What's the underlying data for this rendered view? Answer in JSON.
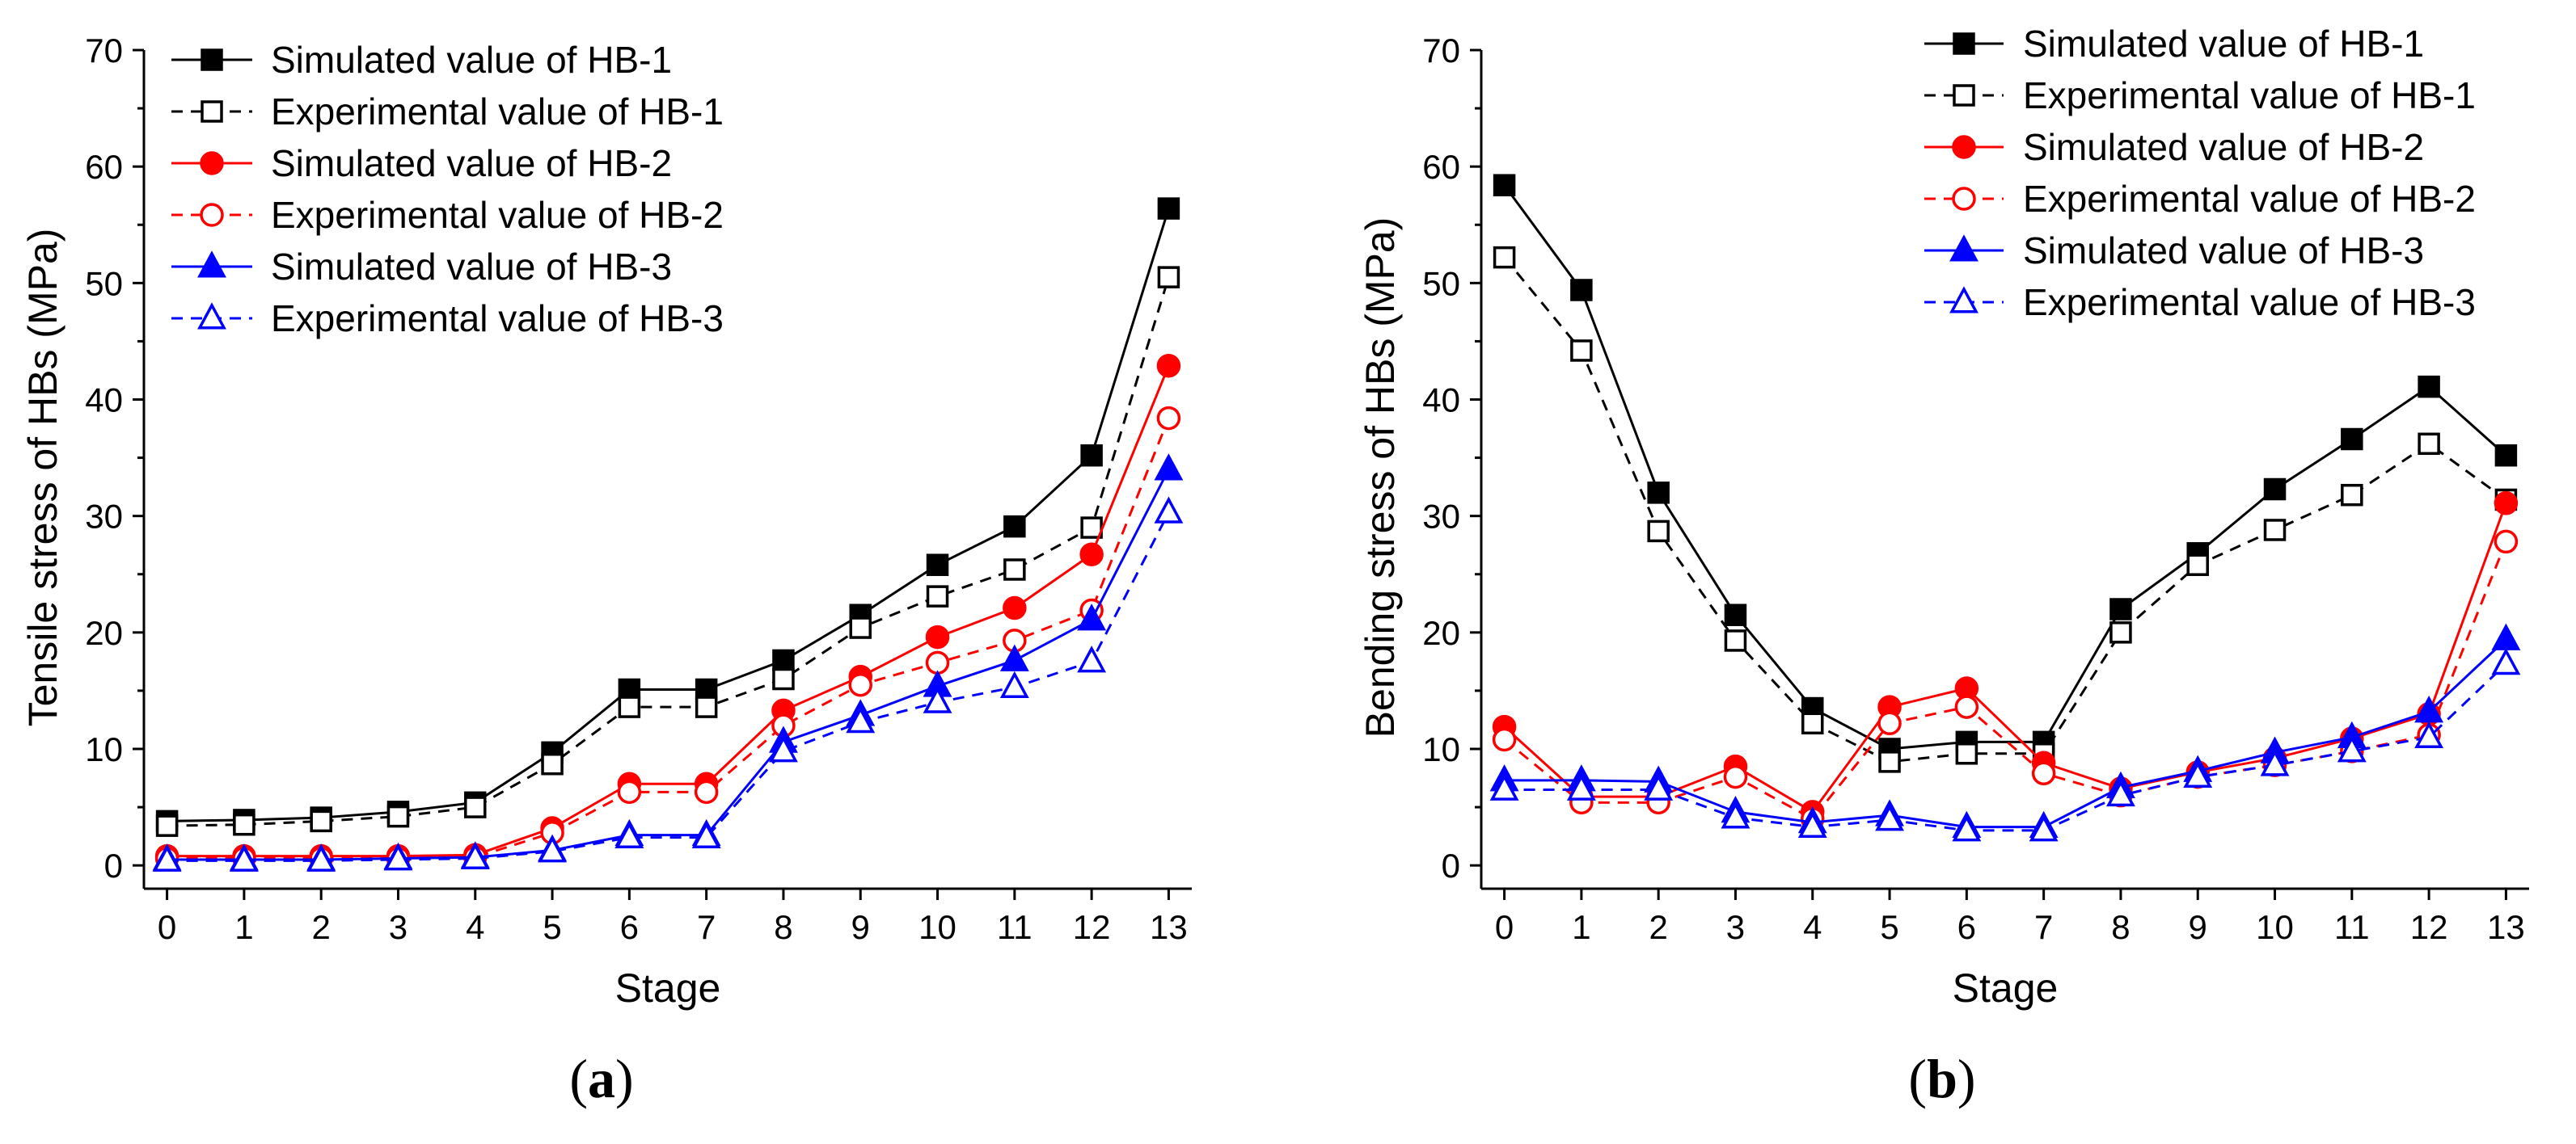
{
  "chart_data": [
    {
      "type": "line",
      "panel_label": "a",
      "xlabel": "Stage",
      "ylabel": "Tensile stress of HBs (MPa)",
      "xlim": [
        -0.3,
        13.3
      ],
      "ylim": [
        -2,
        70
      ],
      "x": [
        0,
        1,
        2,
        3,
        4,
        5,
        6,
        7,
        8,
        9,
        10,
        11,
        12,
        13
      ],
      "xticks": [
        0,
        1,
        2,
        3,
        4,
        5,
        6,
        7,
        8,
        9,
        10,
        11,
        12,
        13
      ],
      "yticks": [
        0,
        10,
        20,
        30,
        40,
        50,
        60,
        70
      ],
      "legend_position": "top-left",
      "series": [
        {
          "name": "Simulated value of HB-1",
          "color": "#000000",
          "marker": "square",
          "filled": true,
          "dashed": false,
          "values": [
            3.8,
            3.9,
            4.1,
            4.6,
            5.4,
            9.7,
            15.1,
            15.1,
            17.6,
            21.5,
            25.8,
            29.1,
            35.2,
            56.4
          ]
        },
        {
          "name": "Experimental value of HB-1",
          "color": "#000000",
          "marker": "square",
          "filled": false,
          "dashed": true,
          "values": [
            3.4,
            3.5,
            3.8,
            4.2,
            5.0,
            8.7,
            13.6,
            13.6,
            16.0,
            20.4,
            23.1,
            25.4,
            29.0,
            50.5
          ]
        },
        {
          "name": "Simulated value of HB-2",
          "color": "#ff0000",
          "marker": "circle",
          "filled": true,
          "dashed": false,
          "values": [
            0.8,
            0.8,
            0.8,
            0.8,
            0.9,
            3.2,
            7.0,
            7.0,
            13.3,
            16.2,
            19.6,
            22.1,
            26.7,
            42.9
          ]
        },
        {
          "name": "Experimental value of HB-2",
          "color": "#ff0000",
          "marker": "circle",
          "filled": false,
          "dashed": true,
          "values": [
            0.6,
            0.6,
            0.6,
            0.6,
            0.7,
            2.8,
            6.3,
            6.3,
            12.0,
            15.5,
            17.4,
            19.3,
            21.9,
            38.4
          ]
        },
        {
          "name": "Simulated value of HB-3",
          "color": "#0000ff",
          "marker": "triangle",
          "filled": true,
          "dashed": false,
          "values": [
            0.5,
            0.5,
            0.5,
            0.6,
            0.7,
            1.3,
            2.6,
            2.6,
            10.6,
            12.9,
            15.4,
            17.6,
            21.1,
            34.0
          ]
        },
        {
          "name": "Experimental value of HB-3",
          "color": "#0000ff",
          "marker": "triangle",
          "filled": false,
          "dashed": true,
          "values": [
            0.4,
            0.4,
            0.4,
            0.5,
            0.6,
            1.2,
            2.4,
            2.4,
            9.8,
            12.3,
            14.0,
            15.3,
            17.5,
            30.3
          ]
        }
      ]
    },
    {
      "type": "line",
      "panel_label": "b",
      "xlabel": "Stage",
      "ylabel": "Bending stress of HBs (MPa)",
      "xlim": [
        -0.3,
        13.3
      ],
      "ylim": [
        -2,
        70
      ],
      "x": [
        0,
        1,
        2,
        3,
        4,
        5,
        6,
        7,
        8,
        9,
        10,
        11,
        12,
        13
      ],
      "xticks": [
        0,
        1,
        2,
        3,
        4,
        5,
        6,
        7,
        8,
        9,
        10,
        11,
        12,
        13
      ],
      "yticks": [
        0,
        10,
        20,
        30,
        40,
        50,
        60,
        70
      ],
      "legend_position": "top-right",
      "series": [
        {
          "name": "Simulated value of HB-1",
          "color": "#000000",
          "marker": "square",
          "filled": true,
          "dashed": false,
          "values": [
            58.4,
            49.4,
            32.0,
            21.5,
            13.5,
            10.0,
            10.6,
            10.6,
            22.0,
            26.8,
            32.3,
            36.6,
            41.1,
            35.2
          ]
        },
        {
          "name": "Experimental value of HB-1",
          "color": "#000000",
          "marker": "square",
          "filled": false,
          "dashed": true,
          "values": [
            52.2,
            44.2,
            28.7,
            19.3,
            12.2,
            8.9,
            9.6,
            9.6,
            20.0,
            25.8,
            28.8,
            31.8,
            36.2,
            31.4
          ]
        },
        {
          "name": "Simulated value of HB-2",
          "color": "#ff0000",
          "marker": "circle",
          "filled": true,
          "dashed": false,
          "values": [
            11.9,
            5.9,
            5.9,
            8.5,
            4.6,
            13.6,
            15.2,
            8.8,
            6.6,
            8.0,
            9.2,
            10.9,
            13.0,
            31.1
          ]
        },
        {
          "name": "Experimental value of HB-2",
          "color": "#ff0000",
          "marker": "circle",
          "filled": false,
          "dashed": true,
          "values": [
            10.8,
            5.4,
            5.4,
            7.6,
            4.0,
            12.2,
            13.6,
            7.9,
            6.0,
            7.6,
            8.6,
            9.8,
            11.2,
            27.8
          ]
        },
        {
          "name": "Simulated value of HB-3",
          "color": "#0000ff",
          "marker": "triangle",
          "filled": true,
          "dashed": false,
          "values": [
            7.3,
            7.3,
            7.2,
            4.6,
            3.7,
            4.3,
            3.3,
            3.3,
            6.7,
            8.1,
            9.7,
            11.0,
            13.2,
            19.4
          ]
        },
        {
          "name": "Experimental value of HB-3",
          "color": "#0000ff",
          "marker": "triangle",
          "filled": false,
          "dashed": true,
          "values": [
            6.5,
            6.5,
            6.5,
            4.1,
            3.3,
            3.9,
            3.0,
            3.0,
            6.0,
            7.6,
            8.6,
            9.8,
            11.0,
            17.3
          ]
        }
      ]
    }
  ]
}
